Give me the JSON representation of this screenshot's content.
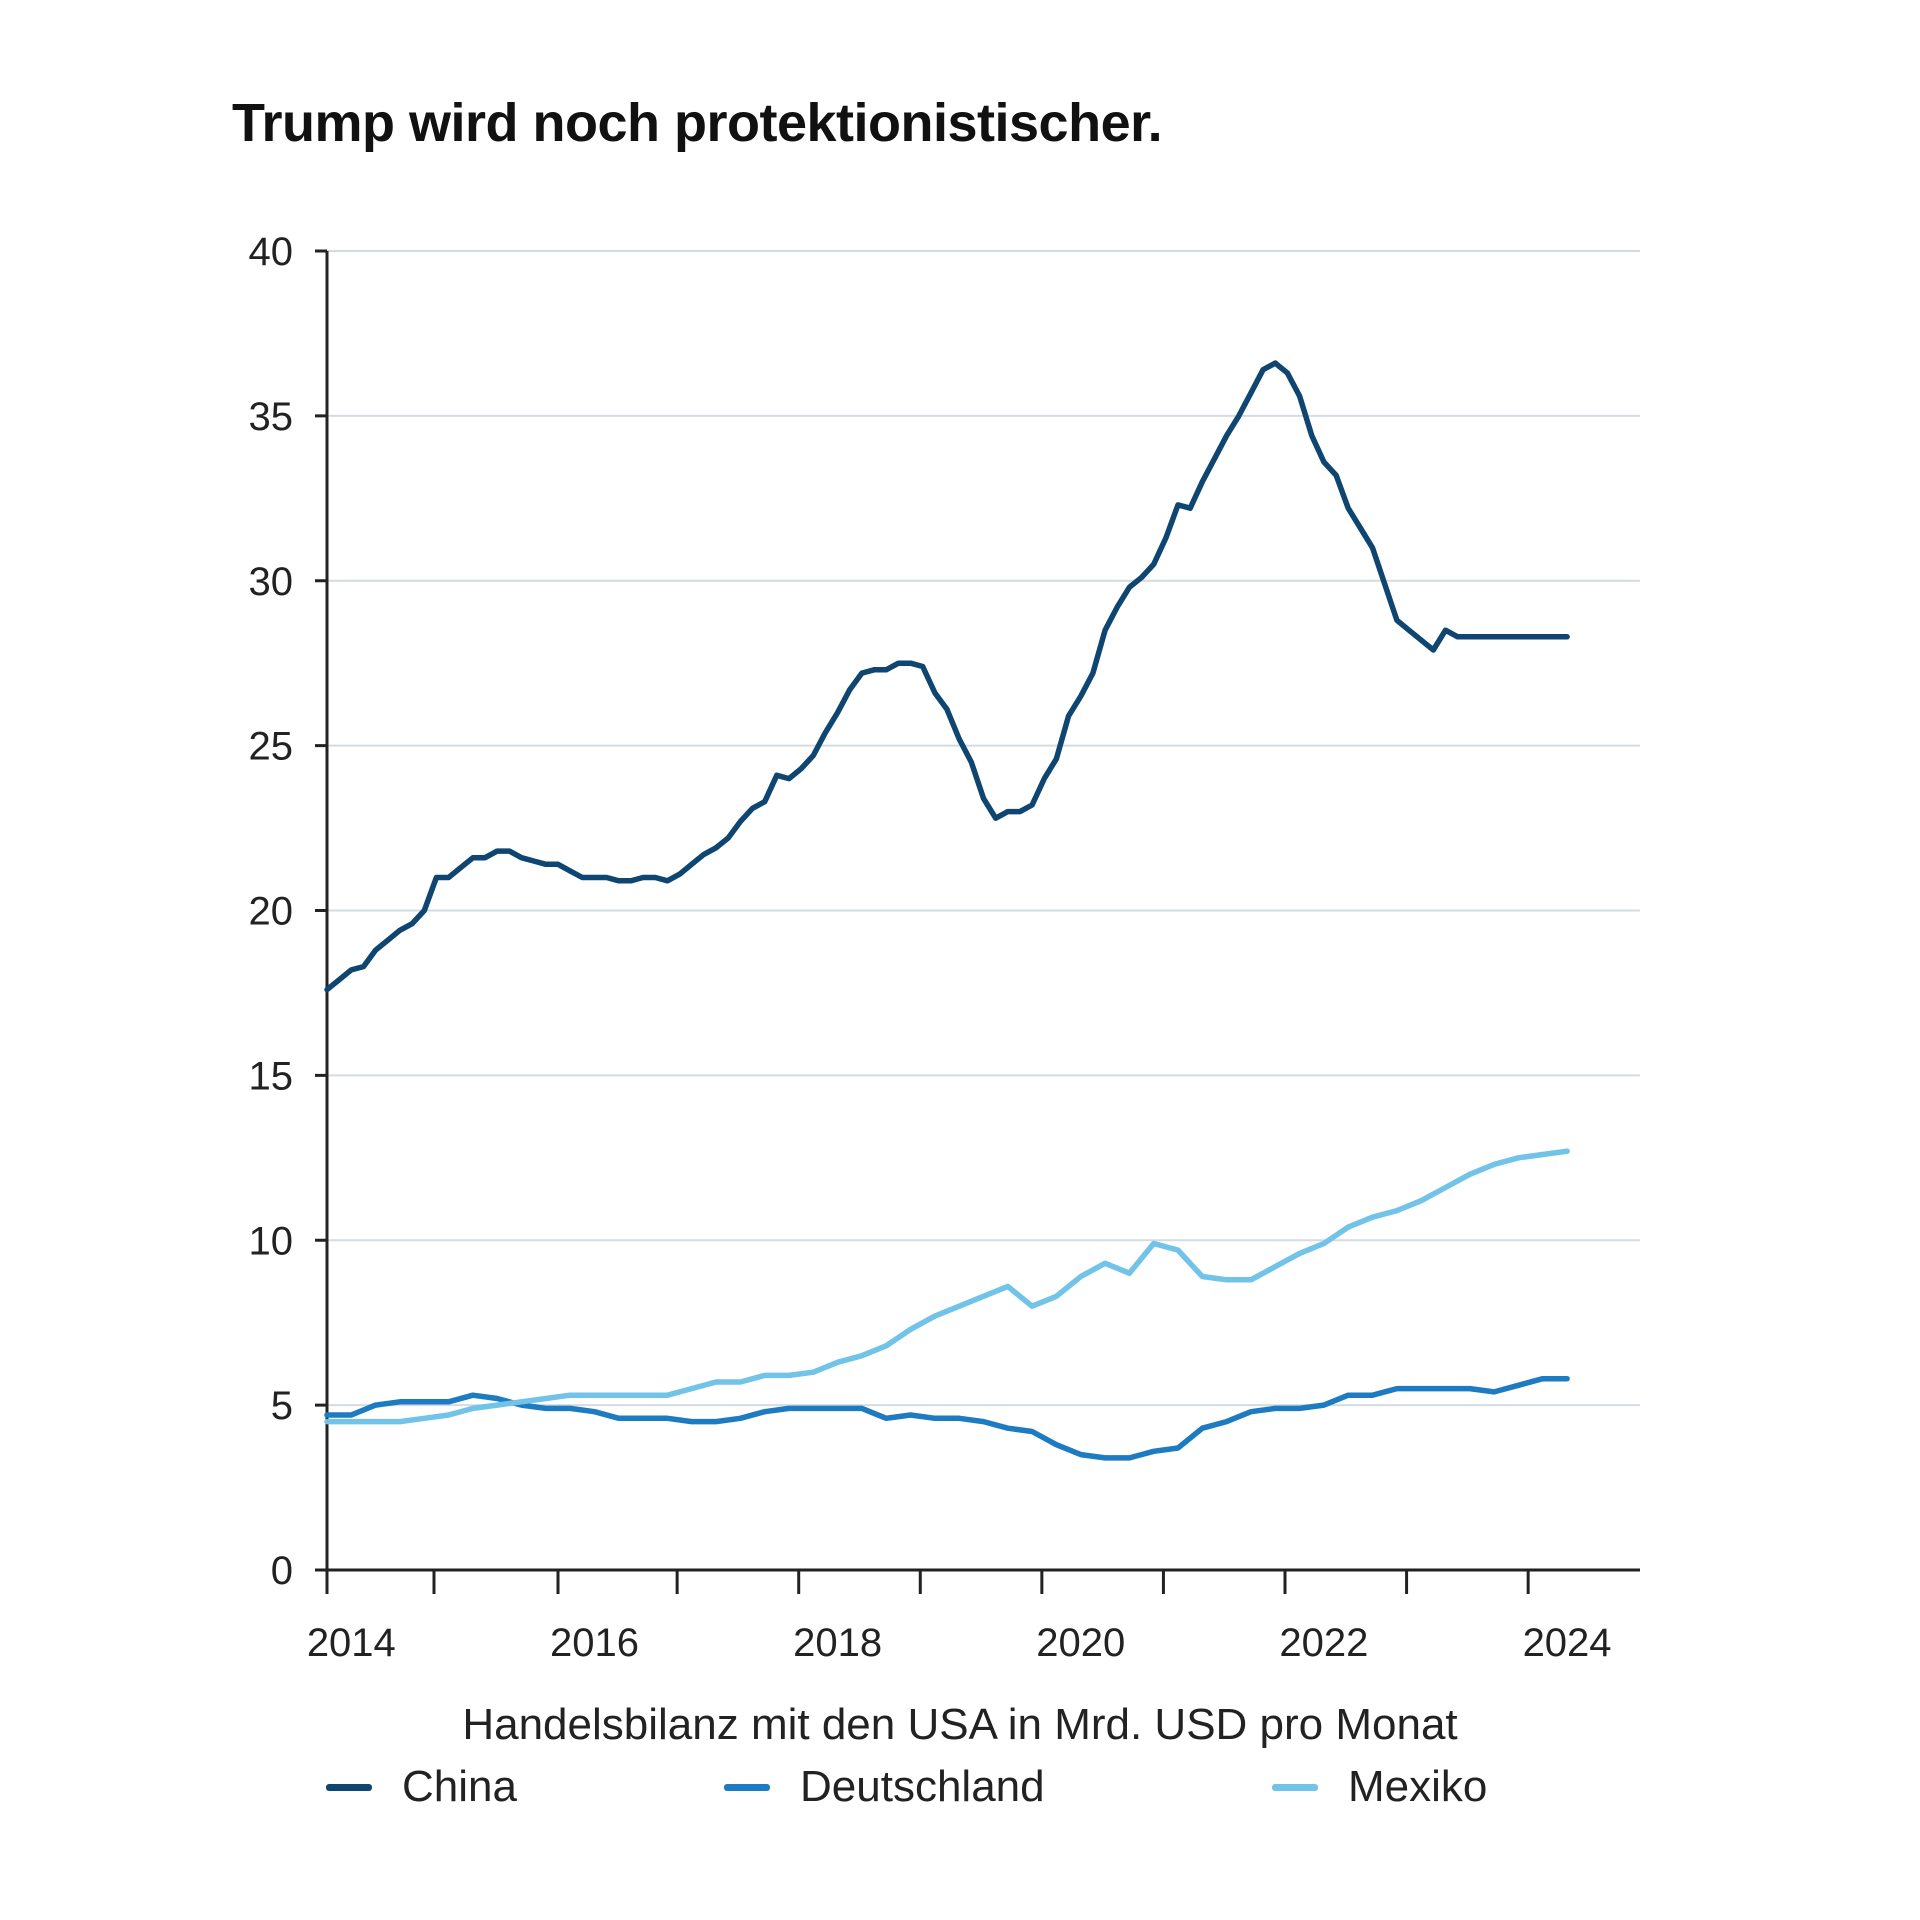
{
  "colors": {
    "china": "#0f4571",
    "deutschland": "#1c7bc1",
    "mexiko": "#71c3e8",
    "grid": "#d5dbe2",
    "axis": "#222222"
  },
  "chart_data": {
    "type": "line",
    "title": "Trump wird noch protektionistischer.",
    "xlabel": "Handelsbilanz mit den USA in Mrd. USD pro Monat",
    "ylabel": "",
    "ylim": [
      0,
      40
    ],
    "xlim": [
      2013.8,
      2024.6
    ],
    "y_ticks": [
      "0",
      "5",
      "10",
      "15",
      "20",
      "25",
      "30",
      "35",
      "40"
    ],
    "x_ticks": [
      "2014",
      "2016",
      "2018",
      "2020",
      "2022",
      "2024"
    ],
    "x_tick_marks": [
      2013.8,
      2014.68,
      2015.7,
      2016.68,
      2017.68,
      2018.68,
      2019.68,
      2020.68,
      2021.68,
      2022.68,
      2023.68
    ],
    "grid": true,
    "legend_placement": "bottom",
    "series": [
      {
        "name": "China",
        "color_key": "china",
        "x": [
          2013.8,
          2013.9,
          2014.0,
          2014.1,
          2014.2,
          2014.3,
          2014.4,
          2014.5,
          2014.6,
          2014.7,
          2014.8,
          2014.9,
          2015.0,
          2015.1,
          2015.2,
          2015.3,
          2015.4,
          2015.5,
          2015.6,
          2015.7,
          2015.8,
          2015.9,
          2016.0,
          2016.1,
          2016.2,
          2016.3,
          2016.4,
          2016.5,
          2016.6,
          2016.7,
          2016.8,
          2016.9,
          2017.0,
          2017.1,
          2017.2,
          2017.3,
          2017.4,
          2017.5,
          2017.6,
          2017.7,
          2017.8,
          2017.9,
          2018.0,
          2018.1,
          2018.2,
          2018.3,
          2018.4,
          2018.5,
          2018.6,
          2018.7,
          2018.8,
          2018.9,
          2019.0,
          2019.1,
          2019.2,
          2019.3,
          2019.4,
          2019.5,
          2019.6,
          2019.7,
          2019.8,
          2019.9,
          2020.0,
          2020.1,
          2020.2,
          2020.3,
          2020.4,
          2020.5,
          2020.6,
          2020.7,
          2020.8,
          2020.9,
          2021.0,
          2021.1,
          2021.2,
          2021.3,
          2021.4,
          2021.5,
          2021.6,
          2021.7,
          2021.8,
          2021.9,
          2022.0,
          2022.1,
          2022.2,
          2022.3,
          2022.4,
          2022.5,
          2022.6,
          2022.7,
          2022.8,
          2022.9,
          2023.0,
          2023.1,
          2023.2,
          2023.3,
          2023.4,
          2023.5,
          2023.6,
          2023.7,
          2023.8,
          2023.9,
          2024.0
        ],
        "values": [
          17.6,
          17.9,
          18.2,
          18.3,
          18.8,
          19.1,
          19.4,
          19.6,
          20.0,
          21.0,
          21.0,
          21.3,
          21.6,
          21.6,
          21.8,
          21.8,
          21.6,
          21.5,
          21.4,
          21.4,
          21.2,
          21.0,
          21.0,
          21.0,
          20.9,
          20.9,
          21.0,
          21.0,
          20.9,
          21.1,
          21.4,
          21.7,
          21.9,
          22.2,
          22.7,
          23.1,
          23.3,
          24.1,
          24.0,
          24.3,
          24.7,
          25.4,
          26.0,
          26.7,
          27.2,
          27.3,
          27.3,
          27.5,
          27.5,
          27.4,
          26.6,
          26.1,
          25.2,
          24.5,
          23.4,
          22.8,
          23.0,
          23.0,
          23.2,
          24.0,
          24.6,
          25.9,
          26.5,
          27.2,
          28.5,
          29.2,
          29.8,
          30.1,
          30.5,
          31.3,
          32.3,
          32.2,
          33.0,
          33.7,
          34.4,
          35.0,
          35.7,
          36.4,
          36.6,
          36.3,
          35.6,
          34.4,
          33.6,
          33.2,
          32.2,
          31.6,
          31.0,
          29.9,
          28.8,
          28.5,
          28.2,
          27.9,
          28.5,
          28.3,
          28.3,
          28.3,
          28.3,
          28.3,
          28.3,
          28.3,
          28.3,
          28.3,
          28.3
        ]
      },
      {
        "name": "Deutschland",
        "color_key": "deutschland",
        "x": [
          2013.8,
          2014.0,
          2014.2,
          2014.4,
          2014.6,
          2014.8,
          2015.0,
          2015.2,
          2015.4,
          2015.6,
          2015.8,
          2016.0,
          2016.2,
          2016.4,
          2016.6,
          2016.8,
          2017.0,
          2017.2,
          2017.4,
          2017.6,
          2017.8,
          2018.0,
          2018.2,
          2018.4,
          2018.6,
          2018.8,
          2019.0,
          2019.2,
          2019.4,
          2019.6,
          2019.8,
          2020.0,
          2020.2,
          2020.4,
          2020.6,
          2020.8,
          2021.0,
          2021.2,
          2021.4,
          2021.6,
          2021.8,
          2022.0,
          2022.2,
          2022.4,
          2022.6,
          2022.8,
          2023.0,
          2023.2,
          2023.4,
          2023.6,
          2023.8,
          2024.0
        ],
        "values": [
          4.7,
          4.7,
          5.0,
          5.1,
          5.1,
          5.1,
          5.3,
          5.2,
          5.0,
          4.9,
          4.9,
          4.8,
          4.6,
          4.6,
          4.6,
          4.5,
          4.5,
          4.6,
          4.8,
          4.9,
          4.9,
          4.9,
          4.9,
          4.6,
          4.7,
          4.6,
          4.6,
          4.5,
          4.3,
          4.2,
          3.8,
          3.5,
          3.4,
          3.4,
          3.6,
          3.7,
          4.3,
          4.5,
          4.8,
          4.9,
          4.9,
          5.0,
          5.3,
          5.3,
          5.5,
          5.5,
          5.5,
          5.5,
          5.4,
          5.6,
          5.8,
          5.8
        ]
      },
      {
        "name": "Mexiko",
        "color_key": "mexiko",
        "x": [
          2013.8,
          2014.0,
          2014.2,
          2014.4,
          2014.6,
          2014.8,
          2015.0,
          2015.2,
          2015.4,
          2015.6,
          2015.8,
          2016.0,
          2016.2,
          2016.4,
          2016.6,
          2016.8,
          2017.0,
          2017.2,
          2017.4,
          2017.6,
          2017.8,
          2018.0,
          2018.2,
          2018.4,
          2018.6,
          2018.8,
          2019.0,
          2019.2,
          2019.4,
          2019.6,
          2019.8,
          2020.0,
          2020.2,
          2020.4,
          2020.6,
          2020.8,
          2021.0,
          2021.2,
          2021.4,
          2021.6,
          2021.8,
          2022.0,
          2022.2,
          2022.4,
          2022.6,
          2022.8,
          2023.0,
          2023.2,
          2023.4,
          2023.6,
          2023.8,
          2024.0
        ],
        "values": [
          4.5,
          4.5,
          4.5,
          4.5,
          4.6,
          4.7,
          4.9,
          5.0,
          5.1,
          5.2,
          5.3,
          5.3,
          5.3,
          5.3,
          5.3,
          5.5,
          5.7,
          5.7,
          5.9,
          5.9,
          6.0,
          6.3,
          6.5,
          6.8,
          7.3,
          7.7,
          8.0,
          8.3,
          8.6,
          8.0,
          8.3,
          8.9,
          9.3,
          9.0,
          9.9,
          9.7,
          8.9,
          8.8,
          8.8,
          9.2,
          9.6,
          9.9,
          10.4,
          10.7,
          10.9,
          11.2,
          11.6,
          12.0,
          12.3,
          12.5,
          12.6,
          12.7
        ]
      }
    ]
  }
}
